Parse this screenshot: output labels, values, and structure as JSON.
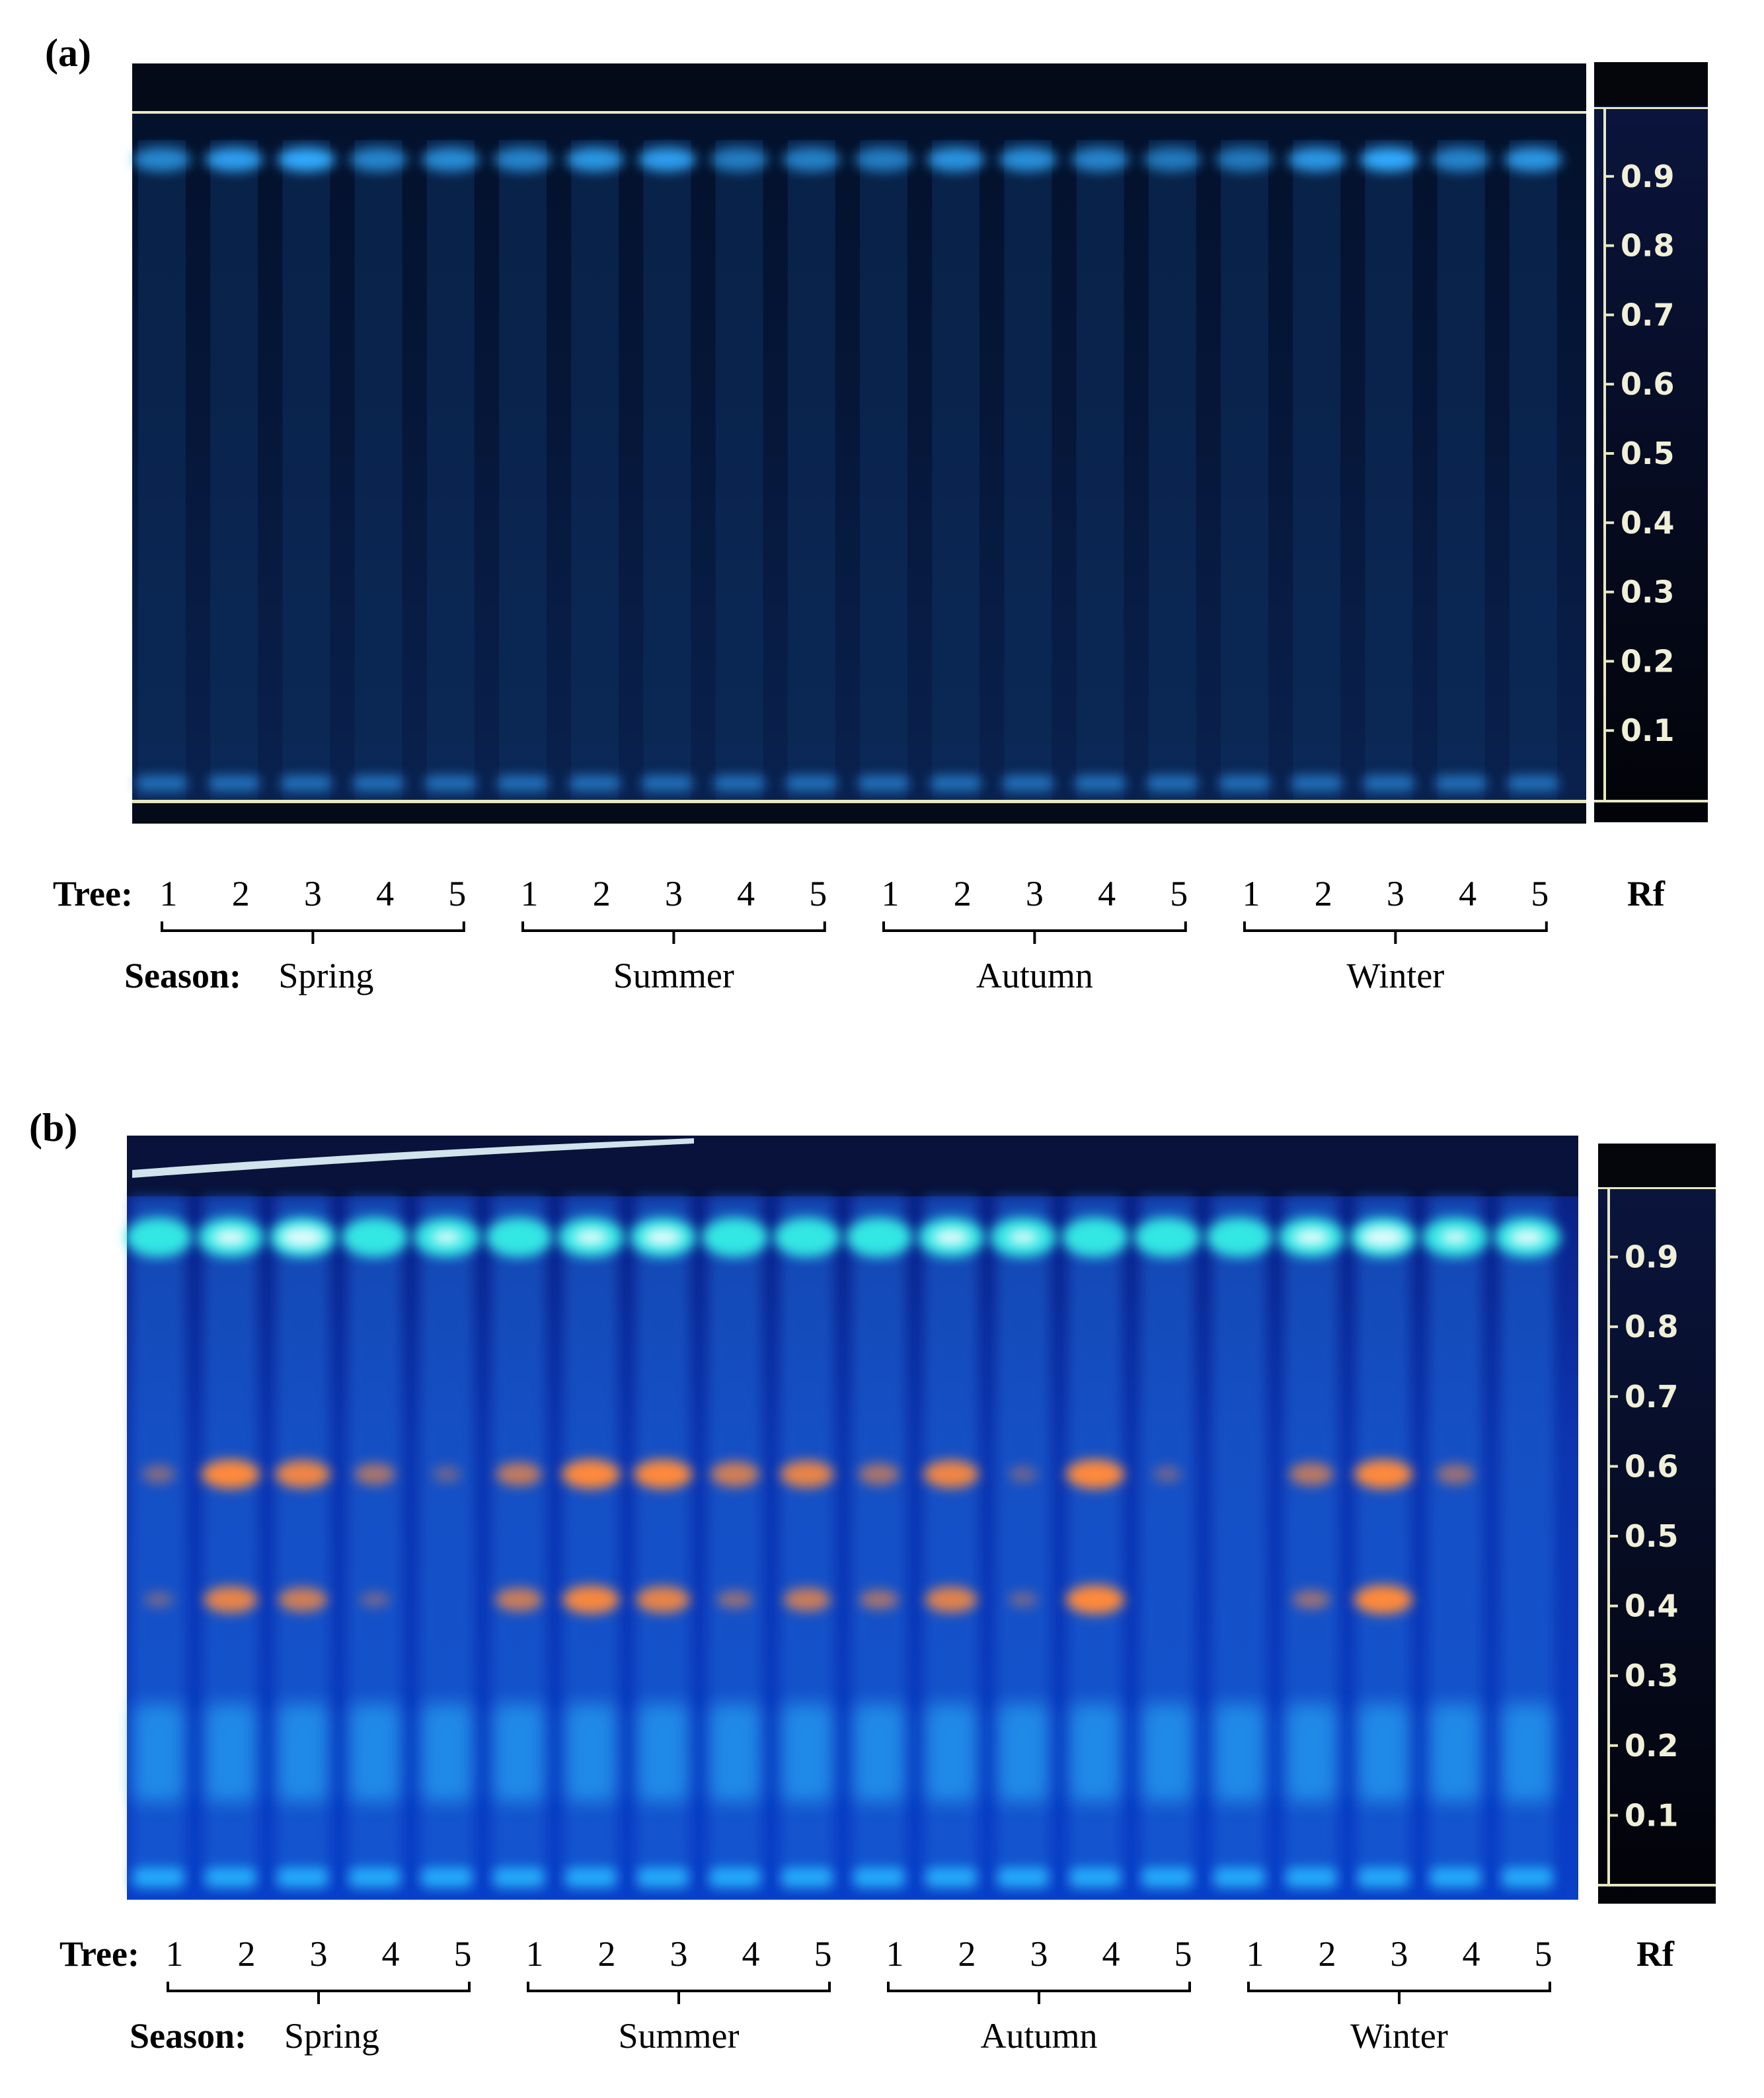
{
  "panels": [
    {
      "label": "(a)",
      "tree_label": "Tree:",
      "season_label": "Season:",
      "rf_label": "Rf",
      "trees": [
        "1",
        "2",
        "3",
        "4",
        "5"
      ],
      "seasons": [
        "Spring",
        "Summer",
        "Autumn",
        "Winter"
      ],
      "rf_ticks": [
        "0.9",
        "0.8",
        "0.7",
        "0.6",
        "0.5",
        "0.4",
        "0.3",
        "0.2",
        "0.1"
      ],
      "colors": {
        "plate": "#04112a",
        "lane": "#0a2a55",
        "band": "#2aa8ff",
        "frame": "#e8e8c0"
      }
    },
    {
      "label": "(b)",
      "tree_label": "Tree:",
      "season_label": "Season:",
      "rf_label": "Rf",
      "trees": [
        "1",
        "2",
        "3",
        "4",
        "5"
      ],
      "seasons": [
        "Spring",
        "Summer",
        "Autumn",
        "Winter"
      ],
      "rf_ticks": [
        "0.9",
        "0.8",
        "0.7",
        "0.6",
        "0.5",
        "0.4",
        "0.3",
        "0.2",
        "0.1"
      ],
      "colors": {
        "plate": "#0b2fa8",
        "lane": "#1668d8",
        "top_band": "#39f0e6",
        "orange_band": "#ff8a3a",
        "bottom_band": "#28b4ff"
      }
    }
  ]
}
